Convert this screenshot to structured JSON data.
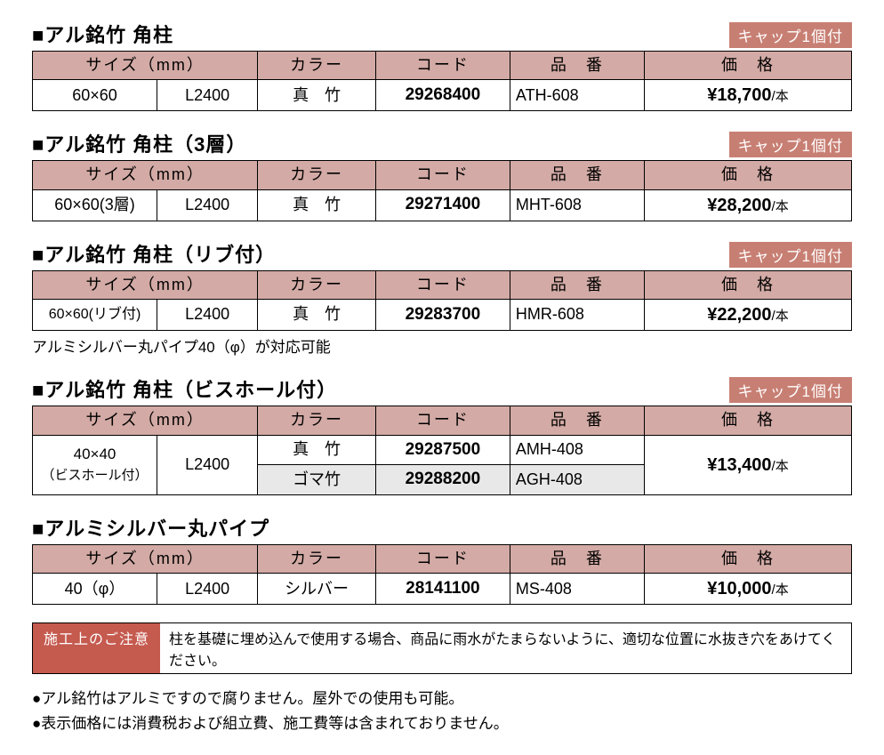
{
  "cols": {
    "size": "サイズ（mm）",
    "color": "カラー",
    "code": "コード",
    "part": "品　番",
    "price": "価　格"
  },
  "badge": "キャップ1個付",
  "sections": [
    {
      "title": "■アル銘竹 角柱",
      "rows": [
        {
          "size1": "60×60",
          "size2": "L2400",
          "color": "真　竹",
          "code": "29268400",
          "part": "ATH-608",
          "price": "¥18,700",
          "unit": "/本"
        }
      ]
    },
    {
      "title": "■アル銘竹 角柱（3層）",
      "rows": [
        {
          "size1": "60×60(3層)",
          "size2": "L2400",
          "color": "真　竹",
          "code": "29271400",
          "part": "MHT-608",
          "price": "¥28,200",
          "unit": "/本"
        }
      ]
    },
    {
      "title": "■アル銘竹 角柱（リブ付）",
      "rows": [
        {
          "size1": "60×60(リブ付)",
          "size2": "L2400",
          "color": "真　竹",
          "code": "29283700",
          "part": "HMR-608",
          "price": "¥22,200",
          "unit": "/本"
        }
      ],
      "subnote": "アルミシルバー丸パイプ40（φ）が対応可能"
    },
    {
      "title": "■アル銘竹 角柱（ビスホール付）",
      "merged": true,
      "size1_line1": "40×40",
      "size1_line2": "（ビスホール付）",
      "size2": "L2400",
      "rows": [
        {
          "color": "真　竹",
          "code": "29287500",
          "part": "AMH-408"
        },
        {
          "color": "ゴマ竹",
          "code": "29288200",
          "part": "AGH-408"
        }
      ],
      "price": "¥13,400",
      "unit": "/本"
    },
    {
      "title": "■アルミシルバー丸パイプ",
      "nobadge": true,
      "rows": [
        {
          "size1": "40（φ）",
          "size2": "L2400",
          "color": "シルバー",
          "code": "28141100",
          "part": "MS-408",
          "price": "¥10,000",
          "unit": "/本"
        }
      ]
    }
  ],
  "caution": {
    "label": "施工上のご注意",
    "text": "柱を基礎に埋め込んで使用する場合、商品に雨水がたまらないように、適切な位置に水抜き穴をあけてください。"
  },
  "bullets": [
    "●アル銘竹はアルミですので腐りません。屋外での使用も可能。",
    "●表示価格には消費税および組立費、施工費等は含まれておりません。"
  ],
  "widths": {
    "size1": "15.2%",
    "size2": "12.3%",
    "color": "14.4%",
    "code": "16.4%",
    "part": "16.4%",
    "price": "25.3%"
  }
}
